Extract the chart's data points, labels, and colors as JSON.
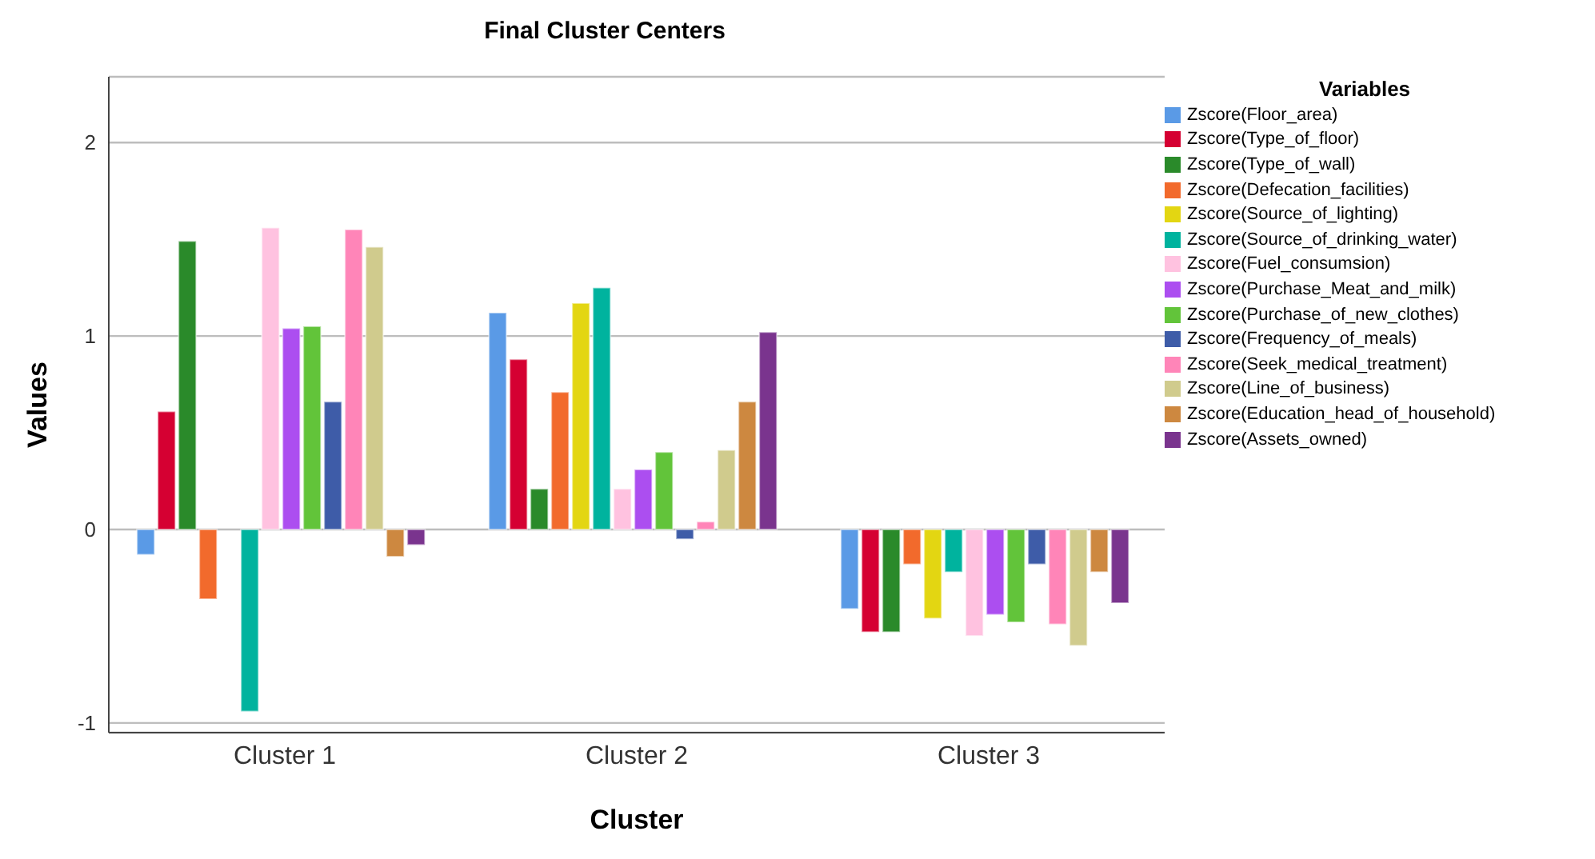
{
  "chart_data": {
    "type": "bar",
    "title": "Final Cluster Centers",
    "xlabel": "Cluster",
    "ylabel": "Values",
    "legend_title": "Variables",
    "categories": [
      "Cluster 1",
      "Cluster 2",
      "Cluster 3"
    ],
    "series": [
      {
        "name": "Zscore(Floor_area)",
        "color": "#5a9ae6",
        "values": [
          -0.13,
          1.12,
          -0.41
        ]
      },
      {
        "name": "Zscore(Type_of_floor)",
        "color": "#d50032",
        "values": [
          0.61,
          0.88,
          -0.53
        ]
      },
      {
        "name": "Zscore(Type_of_wall)",
        "color": "#2a8a2a",
        "values": [
          1.49,
          0.21,
          -0.53
        ]
      },
      {
        "name": "Zscore(Defecation_facilities)",
        "color": "#f26a2c",
        "values": [
          -0.36,
          0.71,
          -0.18
        ]
      },
      {
        "name": "Zscore(Source_of_lighting)",
        "color": "#e3d612",
        "values": [
          0,
          1.17,
          -0.46
        ]
      },
      {
        "name": "Zscore(Source_of_drinking_water)",
        "color": "#00b39e",
        "values": [
          -0.94,
          1.25,
          -0.22
        ]
      },
      {
        "name": "Zscore(Fuel_consumsion)",
        "color": "#ffc2e0",
        "values": [
          1.56,
          0.21,
          -0.55
        ]
      },
      {
        "name": "Zscore(Purchase_Meat_and_milk)",
        "color": "#ac4ef0",
        "values": [
          1.04,
          0.31,
          -0.44
        ]
      },
      {
        "name": "Zscore(Purchase_of_new_clothes)",
        "color": "#62c43a",
        "values": [
          1.05,
          0.4,
          -0.48
        ]
      },
      {
        "name": "Zscore(Frequency_of_meals)",
        "color": "#3e5ca8",
        "values": [
          0.66,
          -0.05,
          -0.18
        ]
      },
      {
        "name": "Zscore(Seek_medical_treatment)",
        "color": "#ff85b8",
        "values": [
          1.55,
          0.04,
          -0.49
        ]
      },
      {
        "name": "Zscore(Line_of_business)",
        "color": "#d0cb8d",
        "values": [
          1.46,
          0.41,
          -0.6
        ]
      },
      {
        "name": "Zscore(Education_head_of_household)",
        "color": "#cd8840",
        "values": [
          -0.14,
          0.66,
          -0.22
        ]
      },
      {
        "name": "Zscore(Assets_owned)",
        "color": "#7a348e",
        "values": [
          -0.08,
          1.02,
          -0.38
        ]
      }
    ],
    "ylim": [
      -1.05,
      2.34
    ],
    "yticks": [
      -1,
      0,
      1,
      2
    ],
    "grid": "y",
    "legend": "top right"
  }
}
